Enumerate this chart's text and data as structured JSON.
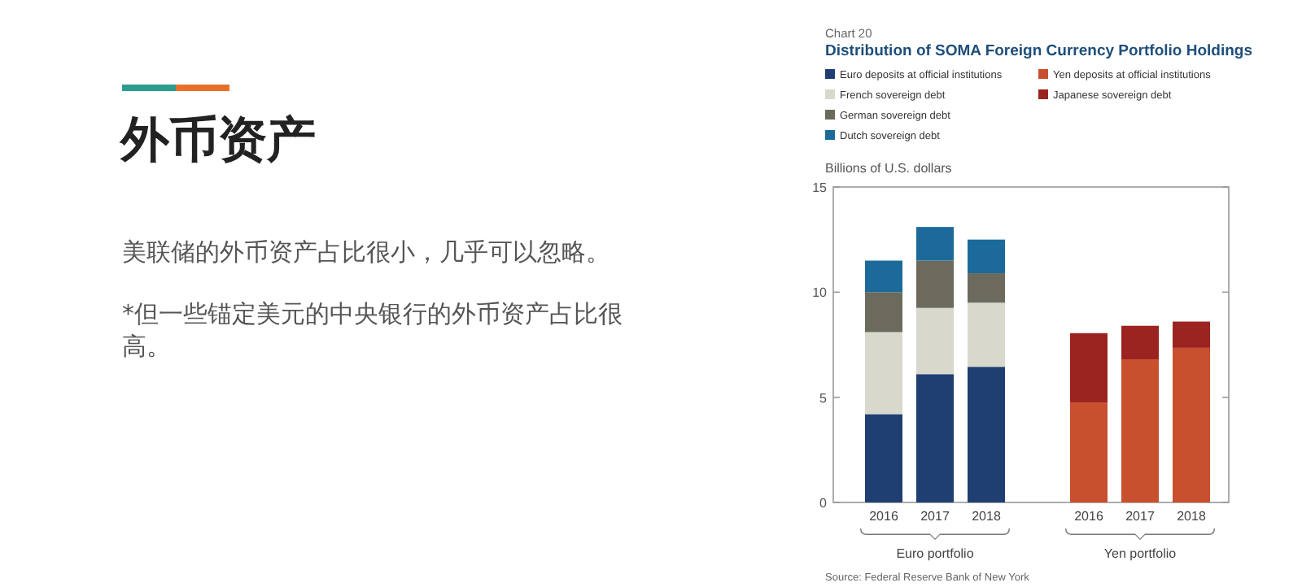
{
  "chart_data": {
    "type": "bar",
    "stacked": true,
    "title": "Distribution of SOMA Foreign Currency Portfolio Holdings",
    "ylabel": "Billions of U.S. dollars",
    "categories": [
      "2016",
      "2017",
      "2018",
      null,
      "2016",
      "2017",
      "2018"
    ],
    "series": [
      {
        "name": "Euro deposits at official institutions",
        "color": "#1f3f73",
        "values": [
          4.2,
          6.1,
          6.45,
          null,
          null,
          null,
          null
        ]
      },
      {
        "name": "French sovereign debt",
        "color": "#d9d8cc",
        "values": [
          3.9,
          3.15,
          3.05,
          null,
          null,
          null,
          null
        ]
      },
      {
        "name": "German sovereign debt",
        "color": "#6b6a5c",
        "values": [
          1.9,
          2.25,
          1.4,
          null,
          null,
          null,
          null
        ]
      },
      {
        "name": "Dutch sovereign debt",
        "color": "#1c6a9a",
        "values": [
          1.5,
          1.6,
          1.6,
          null,
          null,
          null,
          null
        ]
      },
      {
        "name": "Yen deposits at official institutions",
        "color": "#c9502e",
        "values": [
          null,
          null,
          null,
          null,
          4.75,
          6.8,
          7.35
        ]
      },
      {
        "name": "Japanese sovereign debt",
        "color": "#9b2320",
        "values": [
          null,
          null,
          null,
          null,
          3.3,
          1.6,
          1.25
        ]
      }
    ],
    "ylim": [
      0,
      15
    ],
    "yticks": [
      0,
      5,
      10,
      15
    ],
    "legend": "top",
    "tick_labels": "xy",
    "annotations": [
      "Chart 20",
      "Euro portfolio",
      "Yen portfolio",
      "Source: Federal Reserve Bank of New York",
      "外币资产",
      "美联储的外币资产占比很小，几乎可以忽略。",
      "*但一些锚定美元的中央银行的外币资产占比很高。"
    ]
  }
}
